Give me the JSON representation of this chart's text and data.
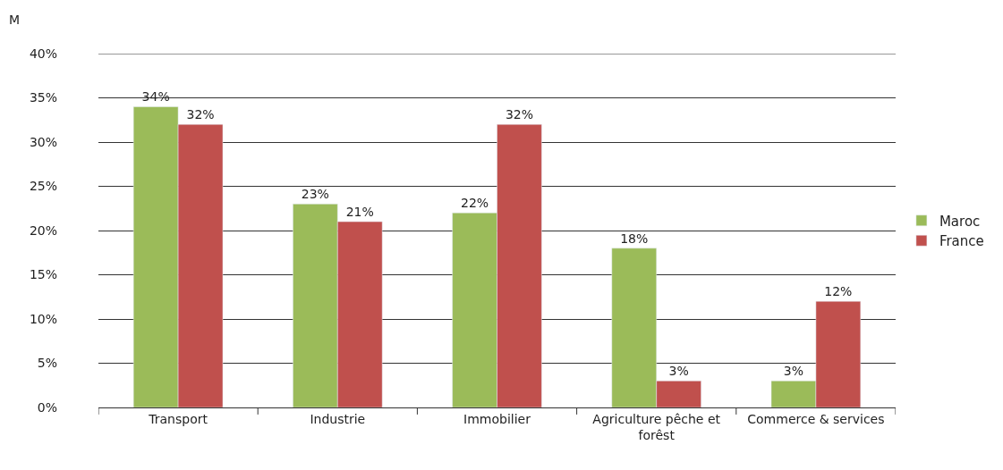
{
  "chart_data": {
    "type": "bar",
    "ylabel": "M",
    "categories": [
      "Transport",
      "Industrie",
      "Immobilier",
      "Agriculture pêche et forêst",
      "Commerce & services"
    ],
    "series": [
      {
        "name": "Maroc",
        "color": "#9bbb59",
        "values": [
          34,
          23,
          22,
          18,
          3
        ],
        "value_labels": [
          "34%",
          "23%",
          "22%",
          "18%",
          "3%"
        ]
      },
      {
        "name": "France",
        "color": "#c0504d",
        "values": [
          32,
          21,
          32,
          3,
          12
        ],
        "value_labels": [
          "32%",
          "21%",
          "32%",
          "3%",
          "12%"
        ]
      }
    ],
    "ylim": [
      0,
      40
    ],
    "yticks": [
      {
        "value": 0,
        "label": "0%"
      },
      {
        "value": 5,
        "label": "5%"
      },
      {
        "value": 10,
        "label": "10%"
      },
      {
        "value": 15,
        "label": "15%"
      },
      {
        "value": 20,
        "label": "20%"
      },
      {
        "value": 25,
        "label": "25%"
      },
      {
        "value": 30,
        "label": "30%"
      },
      {
        "value": 35,
        "label": "35%"
      },
      {
        "value": 40,
        "label": "40%"
      }
    ],
    "grid": "y",
    "legend": "right"
  }
}
